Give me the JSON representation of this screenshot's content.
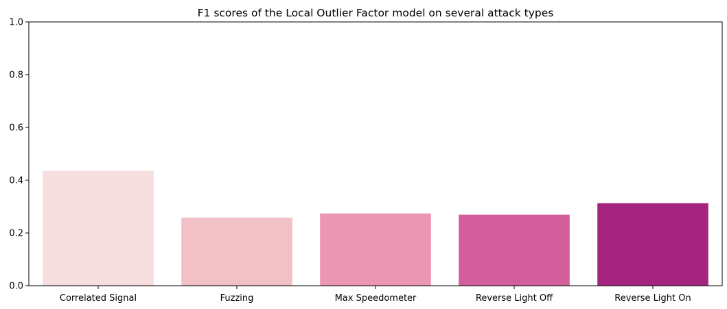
{
  "chart_data": {
    "type": "bar",
    "title": "F1 scores of the Local Outlier Factor model on several attack types",
    "xlabel": "",
    "ylabel": "",
    "categories": [
      "Correlated Signal",
      "Fuzzing",
      "Max Speedometer",
      "Reverse Light Off",
      "Reverse Light On"
    ],
    "values": [
      0.436,
      0.258,
      0.274,
      0.269,
      0.313
    ],
    "colors": [
      "#f6dede",
      "#f2c1c5",
      "#eb97b4",
      "#d35e9c",
      "#a5257e"
    ],
    "ylim": [
      0,
      1
    ],
    "yticks": [
      "0.0",
      "0.2",
      "0.4",
      "0.6",
      "0.8",
      "1.0"
    ],
    "grid": false,
    "legend": "none"
  }
}
